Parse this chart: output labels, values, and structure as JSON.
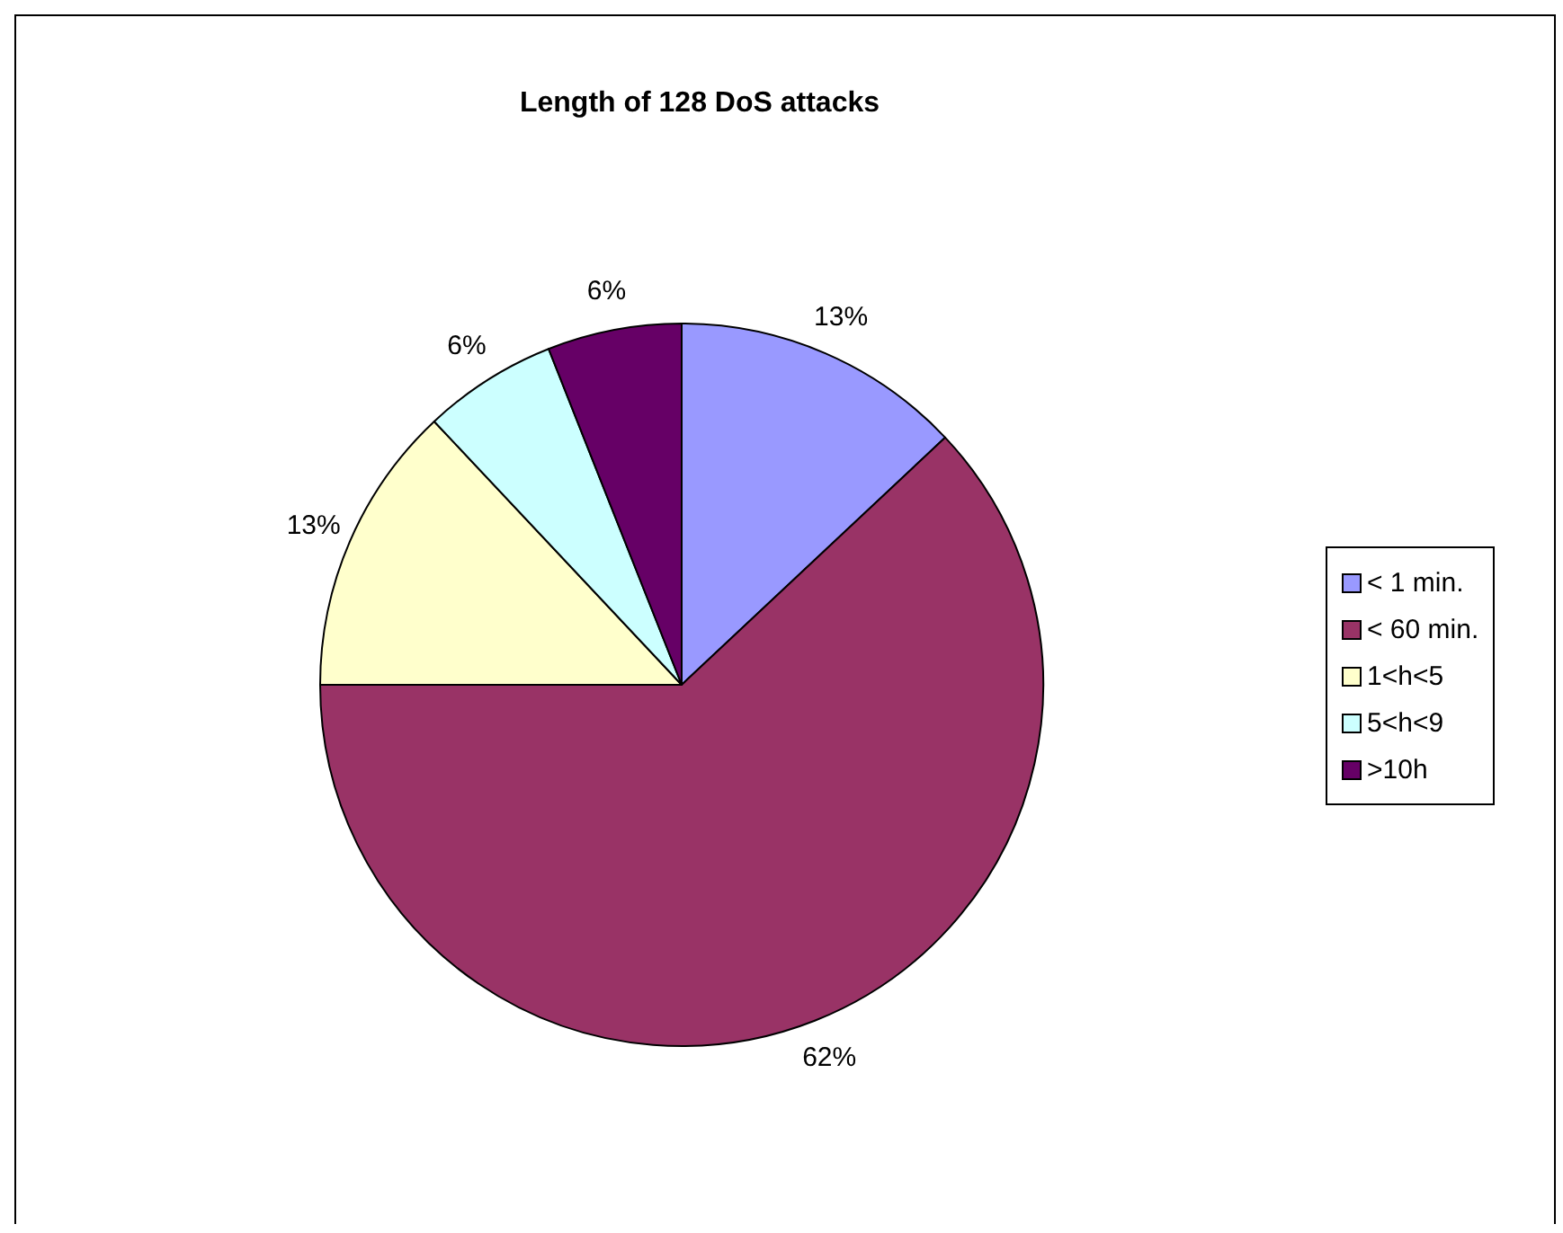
{
  "chart_data": {
    "type": "pie",
    "title": "Length of 128 DoS attacks",
    "categories": [
      "< 1 min.",
      "< 60 min.",
      "1<h<5",
      "5<h<9",
      ">10h"
    ],
    "values": [
      13,
      62,
      13,
      6,
      6
    ],
    "value_labels": [
      "13%",
      "62%",
      "13%",
      "6%",
      "6%"
    ],
    "colors": [
      "#9999ff",
      "#993366",
      "#ffffcc",
      "#ccffff",
      "#660066"
    ],
    "legend": "right"
  }
}
